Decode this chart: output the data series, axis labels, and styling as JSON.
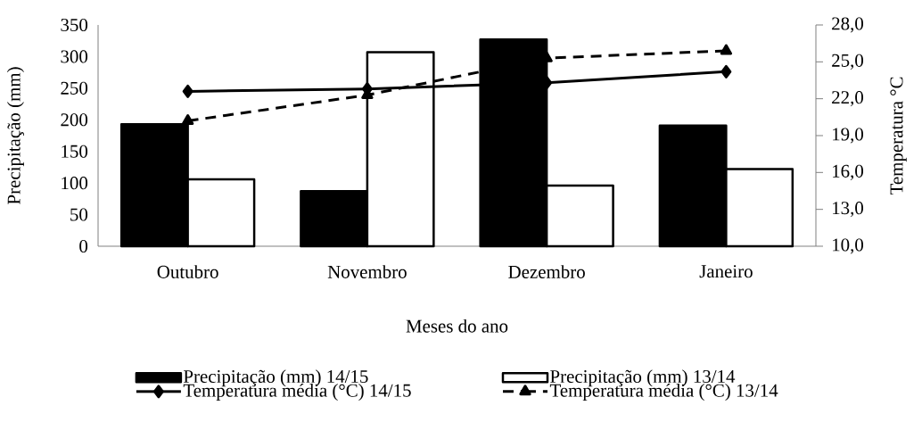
{
  "chart_data": {
    "type": "bar",
    "xlabel": "Meses do ano",
    "ylabel": "Precipitação (mm)",
    "y2label": "Temperatura °C",
    "categories": [
      "Outubro",
      "Novembro",
      "Dezembro",
      "Janeiro"
    ],
    "series": [
      {
        "name": "Precipitação (mm) 14/15",
        "color": "#000000",
        "values": [
          193,
          87,
          327,
          191
        ]
      },
      {
        "name": "Precipitação (mm) 13/14",
        "color": "#ffffff",
        "values": [
          106,
          307,
          96,
          122
        ]
      },
      {
        "name": "Temperatura média (°C) 14/15",
        "type": "line",
        "axis": "y2",
        "color": "#000000",
        "marker": "diamond",
        "line_style": "solid",
        "values": [
          22.6,
          22.8,
          23.3,
          24.2
        ]
      },
      {
        "name": "Temperatura média (°C) 13/14",
        "type": "line",
        "axis": "y2",
        "color": "#000000",
        "marker": "triangle",
        "line_style": "dashed",
        "values": [
          20.2,
          22.3,
          25.3,
          25.9
        ]
      }
    ],
    "ylim": [
      0,
      350
    ],
    "yticks": [
      0,
      50,
      100,
      150,
      200,
      250,
      300,
      350
    ],
    "y2lim": [
      10,
      28
    ],
    "y2ticks": [
      {
        "value": 10,
        "label": "10,0"
      },
      {
        "value": 13,
        "label": "13,0"
      },
      {
        "value": 16,
        "label": "16,0"
      },
      {
        "value": 19,
        "label": "19,0"
      },
      {
        "value": 22,
        "label": "22,0"
      },
      {
        "value": 25,
        "label": "25,0"
      },
      {
        "value": 28,
        "label": "28,0"
      }
    ],
    "legend": "bottom",
    "grid": false
  }
}
